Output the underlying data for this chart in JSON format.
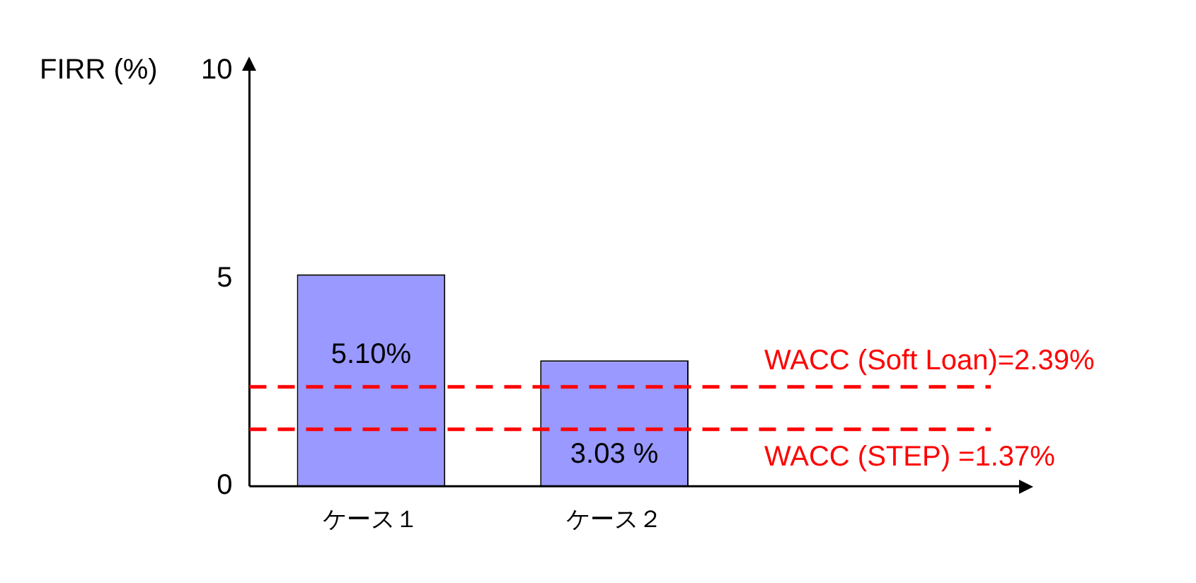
{
  "chart_data": {
    "type": "bar",
    "ylabel": "FIRR (%)",
    "categories": [
      "ケース１",
      "ケース２"
    ],
    "values": [
      5.1,
      3.03
    ],
    "color": "#9999ff",
    "value_labels": [
      "5.10%",
      "3.03 %"
    ],
    "ylim": [
      0,
      10
    ],
    "yticks": [
      0,
      5,
      10
    ],
    "grid": false,
    "legend": false,
    "ref_lines": [
      {
        "axis": "y",
        "value": 2.39,
        "label": "WACC (Soft Loan)=2.39%",
        "color": "#ff0000",
        "line_style": "dashed"
      },
      {
        "axis": "y",
        "value": 1.37,
        "label": "WACC (STEP) =1.37%",
        "color": "#ff0000",
        "line_style": "dashed"
      }
    ]
  }
}
